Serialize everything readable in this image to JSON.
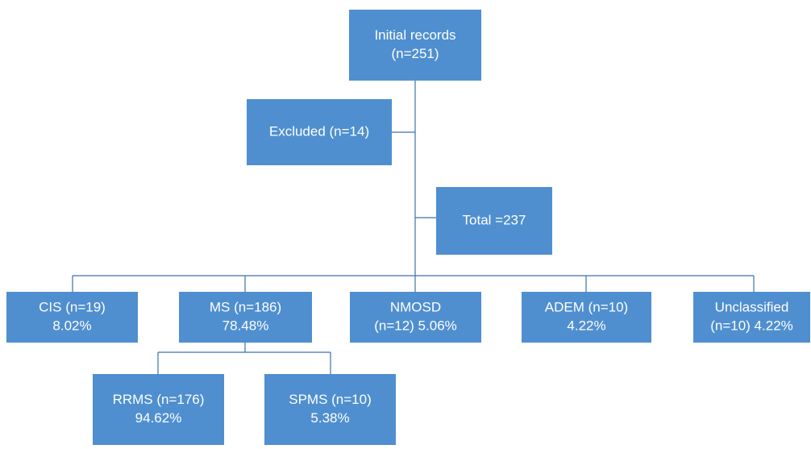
{
  "nodes": [
    {
      "lines": [
        "Initial records",
        "(n=251)"
      ]
    },
    {
      "lines": [
        "Excluded (n=14)"
      ]
    },
    {
      "lines": [
        "Total =237"
      ]
    },
    {
      "lines": [
        "CIS (n=19)",
        "8.02%"
      ]
    },
    {
      "lines": [
        "MS (n=186)",
        "78.48%"
      ]
    },
    {
      "lines": [
        "NMOSD",
        "(n=12) 5.06%"
      ]
    },
    {
      "lines": [
        "ADEM (n=10)",
        "4.22%"
      ]
    },
    {
      "lines": [
        "Unclassified",
        "(n=10) 4.22%"
      ]
    },
    {
      "lines": [
        "RRMS (n=176)",
        "94.62%"
      ]
    },
    {
      "lines": [
        "SPMS (n=10)",
        "5.38%"
      ]
    }
  ]
}
